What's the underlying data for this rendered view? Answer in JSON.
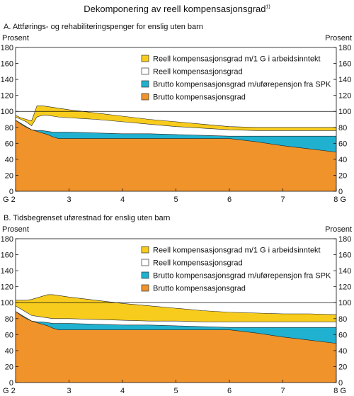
{
  "figure": {
    "title": "Dekomponering av reell kompensasjonsgrad",
    "title_footnote": "1)"
  },
  "chart_data": [
    {
      "type": "area",
      "panel_title": "A.  Attførings- og rehabiliteringspenger for enslig uten barn",
      "ylabel_left": "Prosent",
      "ylabel_right": "Prosent",
      "ylim": [
        0,
        180
      ],
      "yticks": [
        0,
        20,
        40,
        60,
        80,
        100,
        120,
        140,
        160,
        180
      ],
      "xlim": [
        2,
        8
      ],
      "xticks": [
        {
          "x": 2,
          "label": "G 2"
        },
        {
          "x": 3,
          "label": "3"
        },
        {
          "x": 4,
          "label": "4"
        },
        {
          "x": 5,
          "label": "5"
        },
        {
          "x": 6,
          "label": "6"
        },
        {
          "x": 7,
          "label": "7"
        },
        {
          "x": 8,
          "label": "8 G"
        }
      ],
      "reference_line": 100,
      "grid": false,
      "legend_position": "top-right",
      "x": [
        2.0,
        2.1,
        2.2,
        2.3,
        2.4,
        2.5,
        2.6,
        2.7,
        2.8,
        3.0,
        3.5,
        4.0,
        4.5,
        5.0,
        5.5,
        6.0,
        6.5,
        7.0,
        7.5,
        8.0
      ],
      "series": [
        {
          "name": "Brutto kompensasjonsgrad",
          "color": "#f0932b",
          "values": [
            89,
            84,
            80,
            77,
            75,
            73,
            71,
            68,
            66,
            66,
            66,
            66,
            66,
            66,
            66,
            66,
            62,
            57,
            53,
            49
          ]
        },
        {
          "name": "Brutto kompensasjonsgrad m/uførepensjon fra SPK",
          "color": "#1fb1cf",
          "values": [
            89,
            85,
            81,
            77,
            76,
            76,
            75,
            74,
            74,
            74,
            73,
            72,
            72,
            71,
            70,
            69,
            69,
            69,
            69,
            69
          ]
        },
        {
          "name": "Reell kompensasjonsgrad",
          "color": "#ffffff",
          "values": [
            93,
            90,
            87,
            82,
            93,
            95,
            95,
            94,
            93,
            92,
            90,
            87,
            84,
            81,
            79,
            77,
            76,
            76,
            76,
            76
          ]
        },
        {
          "name": "Reell kompensasjonsgrad m/1 G i arbeidsinntekt",
          "color": "#f7cc1d",
          "values": [
            95,
            92,
            90,
            88,
            107,
            107,
            106,
            105,
            104,
            102,
            98,
            94,
            90,
            87,
            84,
            81,
            80,
            80,
            80,
            80
          ]
        }
      ]
    },
    {
      "type": "area",
      "panel_title": "B.  Tidsbegrenset uførestnad for enslig uten barn",
      "ylabel_left": "Prosent",
      "ylabel_right": "Prosent",
      "ylim": [
        0,
        180
      ],
      "yticks": [
        0,
        20,
        40,
        60,
        80,
        100,
        120,
        140,
        160,
        180
      ],
      "xlim": [
        2,
        8
      ],
      "xticks": [
        {
          "x": 2,
          "label": "G 2"
        },
        {
          "x": 3,
          "label": "3"
        },
        {
          "x": 4,
          "label": "4"
        },
        {
          "x": 5,
          "label": "5"
        },
        {
          "x": 6,
          "label": "6"
        },
        {
          "x": 7,
          "label": "7"
        },
        {
          "x": 8,
          "label": "8 G"
        }
      ],
      "reference_line": 100,
      "grid": false,
      "legend_position": "top-right",
      "x": [
        2.0,
        2.1,
        2.2,
        2.3,
        2.4,
        2.5,
        2.6,
        2.7,
        2.8,
        3.0,
        3.5,
        4.0,
        4.5,
        5.0,
        5.5,
        6.0,
        6.5,
        7.0,
        7.5,
        8.0
      ],
      "series": [
        {
          "name": "Brutto kompensasjonsgrad",
          "color": "#f0932b",
          "values": [
            89,
            84,
            80,
            77,
            75,
            73,
            71,
            68,
            66,
            66,
            66,
            66,
            66,
            66,
            66,
            66,
            62,
            57,
            53,
            49
          ]
        },
        {
          "name": "Brutto kompensasjonsgrad m/uførepensjon fra SPK",
          "color": "#1fb1cf",
          "values": [
            89,
            85,
            81,
            77,
            76,
            76,
            75,
            74,
            74,
            74,
            73,
            72,
            72,
            71,
            70,
            69,
            69,
            69,
            69,
            69
          ]
        },
        {
          "name": "Reell kompensasjonsgrad",
          "color": "#ffffff",
          "values": [
            96,
            92,
            88,
            84,
            83,
            82,
            81,
            80,
            80,
            80,
            79,
            78,
            77,
            77,
            76,
            76,
            76,
            76,
            76,
            76
          ]
        },
        {
          "name": "Reell kompensasjonsgrad m/1 G i arbeidsinntekt",
          "color": "#f7cc1d",
          "values": [
            103,
            103,
            103,
            104,
            106,
            108,
            110,
            110,
            109,
            107,
            103,
            99,
            96,
            93,
            90,
            88,
            87,
            86,
            86,
            85
          ]
        }
      ]
    }
  ]
}
